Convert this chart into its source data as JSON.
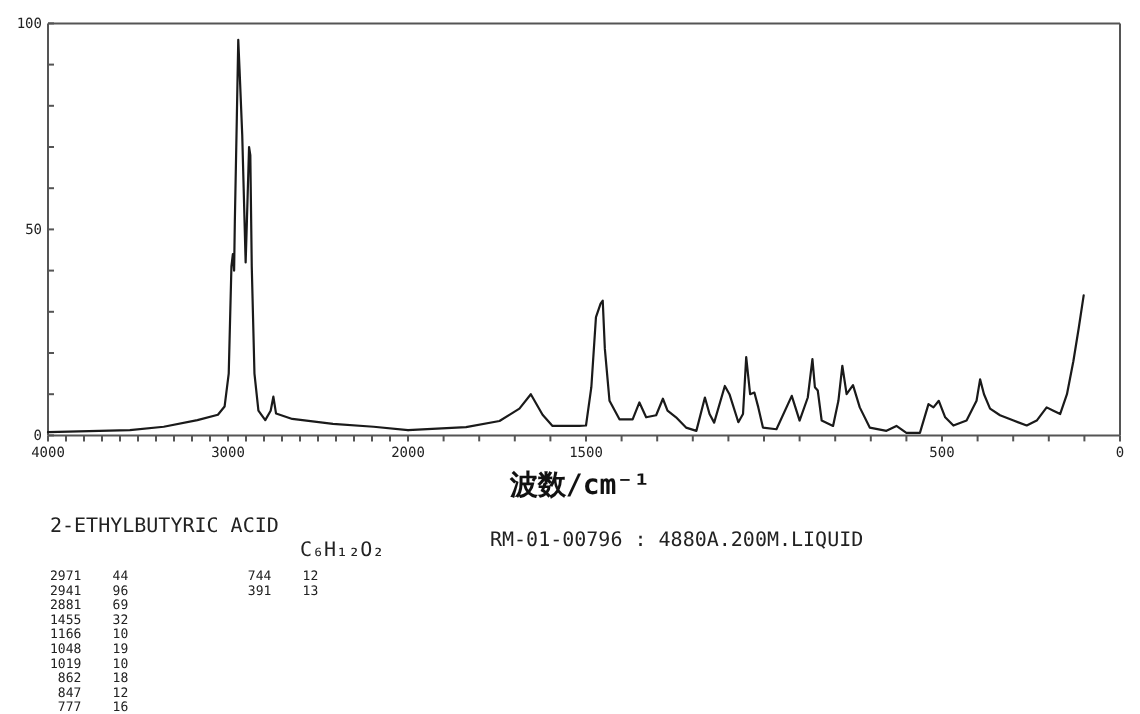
{
  "chart_data": [
    {
      "type": "line",
      "xlim": [
        4000,
        2000
      ],
      "ylim": [
        0,
        100
      ],
      "xticks": [
        4000,
        {
          "value": 3900,
          "label": null
        },
        {
          "value": 3800,
          "label": null
        },
        {
          "value": 3700,
          "label": null
        },
        {
          "value": 3600,
          "label": null
        },
        {
          "value": 3500,
          "label": null
        },
        {
          "value": 3400,
          "label": null
        },
        {
          "value": 3300,
          "label": null
        },
        {
          "value": 3200,
          "label": null
        },
        {
          "value": 3100,
          "label": null
        },
        3000,
        {
          "value": 2900,
          "label": null
        },
        {
          "value": 2800,
          "label": null
        },
        {
          "value": 2700,
          "label": null
        },
        {
          "value": 2600,
          "label": null
        },
        {
          "value": 2500,
          "label": null
        },
        {
          "value": 2400,
          "label": null
        },
        {
          "value": 2300,
          "label": null
        },
        {
          "value": 2200,
          "label": null
        },
        {
          "value": 2100,
          "label": null
        },
        2000
      ],
      "yticks": [
        0,
        {
          "value": 10,
          "label": null
        },
        {
          "value": 20,
          "label": null
        },
        {
          "value": 30,
          "label": null
        },
        {
          "value": 40,
          "label": null
        },
        50,
        {
          "value": 60,
          "label": null
        },
        {
          "value": 70,
          "label": null
        },
        {
          "value": 80,
          "label": null
        },
        {
          "value": 90,
          "label": null
        },
        100
      ],
      "grid": false,
      "marker": "none",
      "line_style": "solid",
      "annotations": [
        "2-ETHYLBUTYRIC ACID",
        "C₆H₁₂O₂",
        "RM-01-00796 : 4880A.200M.LIQUID",
        "2971    44",
        "2941    96",
        "2881    69",
        "1455    32",
        "1166    10",
        "1048    19",
        "1019    10",
        " 862    18",
        " 847    12",
        " 777    16",
        " 744    12",
        " 391    13"
      ],
      "series": [
        {
          "color": "#1a1a1a",
          "x": [
            4000,
            3545,
            3357,
            3170,
            3056,
            3019,
            2996,
            2981,
            2973,
            2966,
            2962,
            2951,
            2943,
            2936,
            2921,
            2913,
            2902,
            2895,
            2883,
            2876,
            2868,
            2853,
            2831,
            2793,
            2763,
            2748,
            2733,
            2643,
            2417,
            2191,
            2000
          ],
          "values": [
            0.8,
            1.3,
            2.1,
            3.7,
            5,
            7,
            15,
            41,
            44,
            40,
            52,
            77,
            96,
            89,
            73,
            60,
            42,
            52,
            70,
            68,
            41,
            15,
            6,
            3.7,
            6,
            9.4,
            5.3,
            4,
            2.8,
            2.1,
            1.3
          ]
        }
      ]
    },
    {
      "type": "line",
      "xlim": [
        2000,
        0
      ],
      "ylim": [
        0,
        100
      ],
      "tick_labels": "x",
      "xlabel": "波数/cm⁻¹",
      "xticks": [
        {
          "value": 1900,
          "label": null
        },
        {
          "value": 1800,
          "label": null
        },
        {
          "value": 1700,
          "label": null
        },
        {
          "value": 1600,
          "label": null
        },
        1500,
        {
          "value": 1400,
          "label": null
        },
        {
          "value": 1300,
          "label": null
        },
        {
          "value": 1200,
          "label": null
        },
        {
          "value": 1100,
          "label": null
        },
        {
          "value": 1000,
          "label": null
        },
        {
          "value": 900,
          "label": null
        },
        {
          "value": 800,
          "label": null
        },
        {
          "value": 700,
          "label": null
        },
        {
          "value": 600,
          "label": null
        },
        500,
        {
          "value": 400,
          "label": null
        },
        {
          "value": 300,
          "label": null
        },
        {
          "value": 200,
          "label": null
        },
        {
          "value": 100,
          "label": null
        },
        0
      ],
      "grid": false,
      "marker": "none",
      "line_style": "solid",
      "series": [
        {
          "color": "#1a1a1a",
          "x": [
            2000,
            1837,
            1743,
            1687,
            1655,
            1622,
            1594,
            1519,
            1500,
            1485,
            1472,
            1459,
            1453,
            1447,
            1434,
            1406,
            1369,
            1350,
            1331,
            1303,
            1284,
            1271,
            1247,
            1219,
            1190,
            1166,
            1153,
            1140,
            1110,
            1097,
            1072,
            1059,
            1050,
            1039,
            1027,
            1016,
            1003,
            965,
            922,
            900,
            877,
            864,
            857,
            849,
            838,
            806,
            791,
            780,
            768,
            750,
            731,
            703,
            656,
            628,
            600,
            562,
            538,
            524,
            509,
            491,
            468,
            431,
            403,
            393,
            382,
            365,
            337,
            299,
            262,
            234,
            206,
            187,
            168,
            149,
            131,
            116,
            102
          ],
          "values": [
            1.3,
            2,
            3.5,
            6.5,
            10,
            5,
            2.3,
            2.3,
            2.4,
            11.7,
            28.7,
            32,
            32.7,
            21,
            8.4,
            3.9,
            3.9,
            8,
            4.4,
            4.9,
            8.9,
            6,
            4.4,
            1.9,
            1.1,
            9.2,
            5.2,
            3.1,
            12,
            10,
            3.2,
            5.2,
            19,
            10,
            10.4,
            6.8,
            1.9,
            1.5,
            9.6,
            3.6,
            9.2,
            18.5,
            11.7,
            10.9,
            3.6,
            2.3,
            8.4,
            16.9,
            10,
            12.2,
            6.8,
            1.9,
            1.1,
            2.3,
            0.6,
            0.6,
            7.6,
            6.8,
            8.4,
            4.4,
            2.4,
            3.6,
            8.4,
            13.6,
            10,
            6.5,
            4.9,
            3.6,
            2.4,
            3.6,
            6.8,
            6,
            5.2,
            10,
            18,
            26,
            34
          ]
        }
      ]
    }
  ]
}
